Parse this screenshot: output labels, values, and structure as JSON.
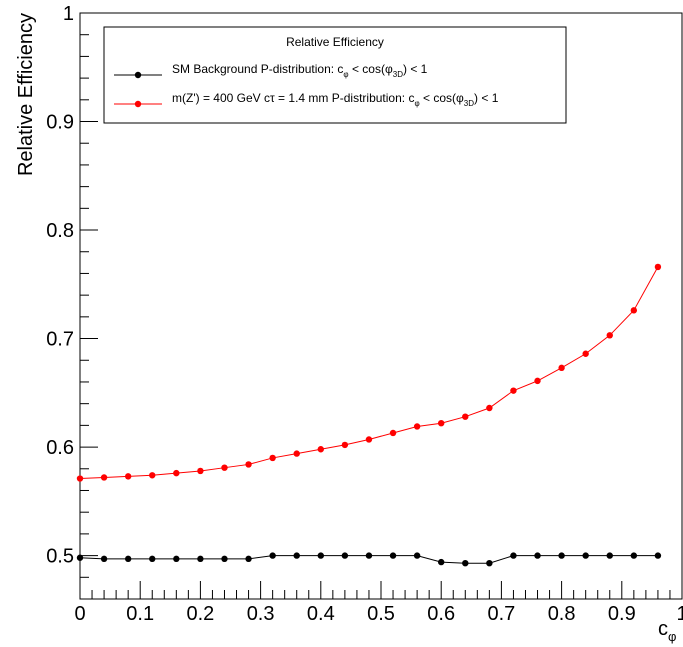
{
  "chart_data": {
    "type": "line",
    "title": "",
    "xlabel": "c",
    "xlabel_sub": "φ",
    "ylabel": "Relative Efficiency",
    "xlim": [
      0,
      1
    ],
    "ylim": [
      0.46,
      1.0
    ],
    "x_ticks": [
      "0",
      "0.1",
      "0.2",
      "0.3",
      "0.4",
      "0.5",
      "0.6",
      "0.7",
      "0.8",
      "0.9",
      "1"
    ],
    "y_ticks": [
      "0.5",
      "0.6",
      "0.7",
      "0.8",
      "0.9",
      "1"
    ],
    "grid": false,
    "legend": {
      "title": "Relative Efficiency",
      "placement": "top"
    },
    "series": [
      {
        "name": "SM Background P-distribution: c",
        "name_sub1": "φ",
        "name_mid": " < cos(φ",
        "name_sub2": "3D",
        "name_end": ") < 1",
        "color": "#000000",
        "x": [
          0.0,
          0.04,
          0.08,
          0.12,
          0.16,
          0.2,
          0.24,
          0.28,
          0.32,
          0.36,
          0.4,
          0.44,
          0.48,
          0.52,
          0.56,
          0.6,
          0.64,
          0.68,
          0.72,
          0.76,
          0.8,
          0.84,
          0.88,
          0.92,
          0.96
        ],
        "values": [
          0.498,
          0.497,
          0.497,
          0.497,
          0.497,
          0.497,
          0.497,
          0.497,
          0.5,
          0.5,
          0.5,
          0.5,
          0.5,
          0.5,
          0.5,
          0.494,
          0.493,
          0.493,
          0.5,
          0.5,
          0.5,
          0.5,
          0.5,
          0.5,
          0.5
        ]
      },
      {
        "name": "m(Z') = 400 GeV cτ = 1.4 mm P-distribution: c",
        "name_sub1": "φ",
        "name_mid": " < cos(φ",
        "name_sub2": "3D",
        "name_end": ") < 1",
        "color": "#ff0000",
        "x": [
          0.0,
          0.04,
          0.08,
          0.12,
          0.16,
          0.2,
          0.24,
          0.28,
          0.32,
          0.36,
          0.4,
          0.44,
          0.48,
          0.52,
          0.56,
          0.6,
          0.64,
          0.68,
          0.72,
          0.76,
          0.8,
          0.84,
          0.88,
          0.92,
          0.96
        ],
        "values": [
          0.571,
          0.572,
          0.573,
          0.574,
          0.576,
          0.578,
          0.581,
          0.584,
          0.59,
          0.594,
          0.598,
          0.602,
          0.607,
          0.613,
          0.619,
          0.622,
          0.628,
          0.636,
          0.652,
          0.661,
          0.673,
          0.686,
          0.703,
          0.726,
          0.766
        ]
      }
    ]
  }
}
